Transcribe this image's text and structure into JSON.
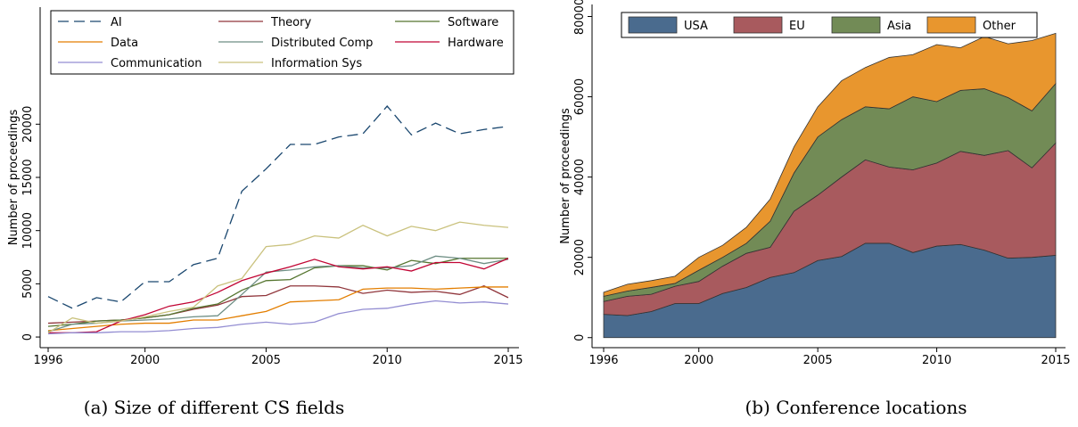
{
  "chart_data": [
    {
      "type": "line",
      "caption": "(a) Size of different CS fields",
      "ylabel": "Number of proceedings",
      "x": [
        1996,
        1997,
        1998,
        1999,
        2000,
        2001,
        2002,
        2003,
        2004,
        2005,
        2006,
        2007,
        2008,
        2009,
        2010,
        2011,
        2012,
        2013,
        2014,
        2015
      ],
      "xlim": [
        1996,
        2015
      ],
      "xticks": [
        1996,
        2000,
        2005,
        2010,
        2015
      ],
      "ylim": [
        -1000,
        31000
      ],
      "yticks": [
        0,
        5000,
        10000,
        15000,
        20000
      ],
      "grid": false,
      "legend": "top",
      "series": [
        {
          "name": "AI",
          "color": "#1a476f",
          "dash": true,
          "values": [
            3800,
            2700,
            3700,
            3300,
            5200,
            5200,
            6800,
            7400,
            13700,
            15800,
            18100,
            18100,
            18800,
            19100,
            21700,
            19000,
            20100,
            19100,
            19500,
            19800
          ]
        },
        {
          "name": "Theory",
          "color": "#90353b",
          "values": [
            1300,
            1400,
            1500,
            1600,
            1800,
            2100,
            2600,
            3000,
            3800,
            3900,
            4800,
            4800,
            4700,
            4100,
            4400,
            4200,
            4300,
            4000,
            4800,
            3700
          ]
        },
        {
          "name": "Software",
          "color": "#55752f",
          "values": [
            1000,
            1200,
            1500,
            1600,
            1800,
            2100,
            2700,
            3100,
            4400,
            5300,
            5400,
            6500,
            6700,
            6700,
            6300,
            7200,
            6900,
            7400,
            7400,
            7400
          ]
        },
        {
          "name": "Data",
          "color": "#e37e00",
          "values": [
            600,
            800,
            1000,
            1200,
            1300,
            1300,
            1600,
            1600,
            2000,
            2400,
            3300,
            3400,
            3500,
            4500,
            4600,
            4600,
            4500,
            4600,
            4700,
            4700
          ]
        },
        {
          "name": "Distributed Comp",
          "color": "#6e8e84",
          "values": [
            500,
            1200,
            1300,
            1500,
            1600,
            1700,
            1900,
            2000,
            4000,
            6100,
            6300,
            6600,
            6700,
            6500,
            6500,
            6700,
            7600,
            7400,
            6900,
            7300
          ]
        },
        {
          "name": "Hardware",
          "color": "#c10534",
          "values": [
            400,
            400,
            500,
            1500,
            2100,
            2900,
            3300,
            4200,
            5300,
            6000,
            6600,
            7300,
            6600,
            6400,
            6600,
            6200,
            7000,
            7000,
            6400,
            7400
          ]
        },
        {
          "name": "Communication",
          "color": "#938dd2",
          "values": [
            300,
            400,
            400,
            500,
            500,
            600,
            800,
            900,
            1200,
            1400,
            1200,
            1400,
            2200,
            2600,
            2700,
            3100,
            3400,
            3200,
            3300,
            3100
          ]
        },
        {
          "name": "Information Sys",
          "color": "#cac27e",
          "values": [
            400,
            1800,
            1300,
            1500,
            1900,
            2400,
            2800,
            4800,
            5500,
            8500,
            8700,
            9500,
            9300,
            10500,
            9500,
            10400,
            10000,
            10800,
            10500,
            10300
          ]
        }
      ]
    },
    {
      "type": "area",
      "stacked": true,
      "caption": "(b) Conference locations",
      "ylabel": "Number of proceedings",
      "x": [
        1996,
        1997,
        1998,
        1999,
        2000,
        2001,
        2002,
        2003,
        2004,
        2005,
        2006,
        2007,
        2008,
        2009,
        2010,
        2011,
        2012,
        2013,
        2014,
        2015
      ],
      "xlim": [
        1996,
        2015
      ],
      "xticks": [
        1996,
        2000,
        2005,
        2010,
        2015
      ],
      "ylim": [
        -2500,
        83000
      ],
      "yticks": [
        0,
        20000,
        40000,
        60000,
        80000
      ],
      "grid": false,
      "legend": "top",
      "series": [
        {
          "name": "USA",
          "color": "#4a6b8e",
          "values": [
            5800,
            5500,
            6500,
            8500,
            8500,
            11000,
            12500,
            15000,
            16200,
            19200,
            20200,
            23500,
            23500,
            21200,
            22800,
            23200,
            21800,
            19800,
            20000,
            20500
          ]
        },
        {
          "name": "EU",
          "color": "#a85a5e",
          "values": [
            3200,
            4800,
            4300,
            4300,
            5500,
            6800,
            8500,
            7500,
            15300,
            16300,
            19800,
            20800,
            19000,
            20600,
            20700,
            23200,
            23600,
            26800,
            22300,
            28000
          ]
        },
        {
          "name": "Asia",
          "color": "#728b56",
          "values": [
            1300,
            1300,
            1700,
            700,
            2800,
            2200,
            2500,
            6500,
            9500,
            14500,
            14300,
            13200,
            14500,
            18200,
            15300,
            15200,
            16600,
            13200,
            14200,
            14800
          ]
        },
        {
          "name": "Other",
          "color": "#e8962e",
          "values": [
            1000,
            1700,
            1700,
            1800,
            3200,
            3000,
            4000,
            5500,
            6500,
            7500,
            9700,
            9800,
            12800,
            10500,
            14200,
            10600,
            13000,
            13400,
            17500,
            12500
          ]
        }
      ]
    }
  ]
}
